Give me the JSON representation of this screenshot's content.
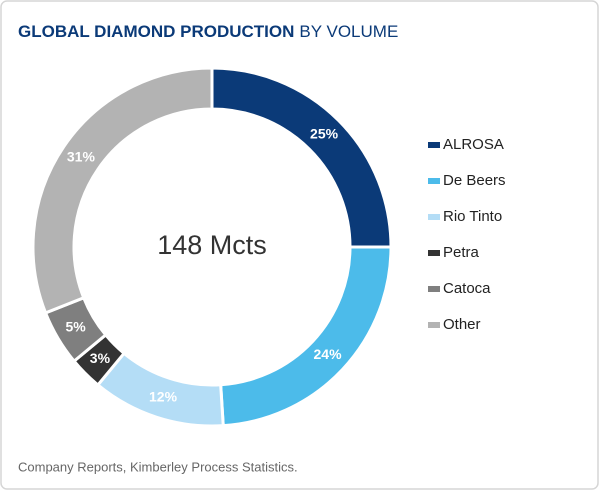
{
  "chart_data": {
    "type": "pie",
    "title": "GLOBAL DIAMOND PRODUCTION",
    "subtitle": "BY VOLUME",
    "center_label": "148 Mcts",
    "source": "Company Reports, Kimberley Process Statistics.",
    "categories": [
      "ALROSA",
      "De Beers",
      "Rio Tinto",
      "Petra",
      "Catoca",
      "Other"
    ],
    "values": [
      25,
      24,
      12,
      3,
      5,
      31
    ],
    "value_labels": [
      "25%",
      "24%",
      "12%",
      "3%",
      "5%",
      "31%"
    ],
    "colors": [
      "#0b3a78",
      "#4cbbea",
      "#b4ddf6",
      "#333333",
      "#7f7f7f",
      "#b3b3b3"
    ],
    "legend": "right"
  }
}
